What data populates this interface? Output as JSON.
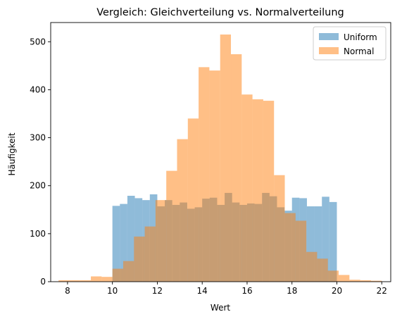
{
  "chart_data": {
    "type": "bar",
    "title": "Vergleich: Gleichverteilung vs. Normalverteilung",
    "xlabel": "Wert",
    "ylabel": "Häufigkeit",
    "xlim": [
      7.25,
      22.4
    ],
    "ylim": [
      0,
      540
    ],
    "xticks": [
      8,
      10,
      12,
      14,
      16,
      18,
      20,
      22
    ],
    "yticks": [
      0,
      100,
      200,
      300,
      400,
      500
    ],
    "legend_position": "top-right",
    "series": [
      {
        "name": "Uniform",
        "color": "#1f77b4",
        "opacity": 0.5,
        "bin_width": 0.333,
        "bin_starts": [
          10.0,
          10.333,
          10.667,
          11.0,
          11.333,
          11.667,
          12.0,
          12.333,
          12.667,
          13.0,
          13.333,
          13.667,
          14.0,
          14.333,
          14.667,
          15.0,
          15.333,
          15.667,
          16.0,
          16.333,
          16.667,
          17.0,
          17.333,
          17.667,
          18.0,
          18.333,
          18.667,
          19.0,
          19.333,
          19.667
        ],
        "values": [
          158,
          162,
          179,
          174,
          170,
          182,
          157,
          170,
          160,
          165,
          152,
          155,
          173,
          175,
          160,
          185,
          165,
          160,
          163,
          162,
          185,
          178,
          155,
          148,
          175,
          174,
          157,
          157,
          177,
          166
        ]
      },
      {
        "name": "Normal",
        "color": "#ff7f0e",
        "opacity": 0.5,
        "bin_width": 0.48,
        "bin_starts": [
          7.6,
          8.08,
          8.56,
          9.04,
          9.52,
          10.0,
          10.48,
          10.96,
          11.44,
          11.92,
          12.4,
          12.88,
          13.36,
          13.84,
          14.32,
          14.8,
          15.28,
          15.76,
          16.24,
          16.72,
          17.2,
          17.68,
          18.16,
          18.64,
          19.12,
          19.6,
          20.08,
          20.56,
          21.04,
          21.52
        ],
        "values": [
          3,
          3,
          3,
          11,
          10,
          27,
          43,
          94,
          115,
          170,
          231,
          297,
          340,
          447,
          440,
          515,
          474,
          390,
          380,
          377,
          222,
          143,
          127,
          62,
          48,
          23,
          14,
          4,
          3,
          2
        ]
      }
    ]
  }
}
